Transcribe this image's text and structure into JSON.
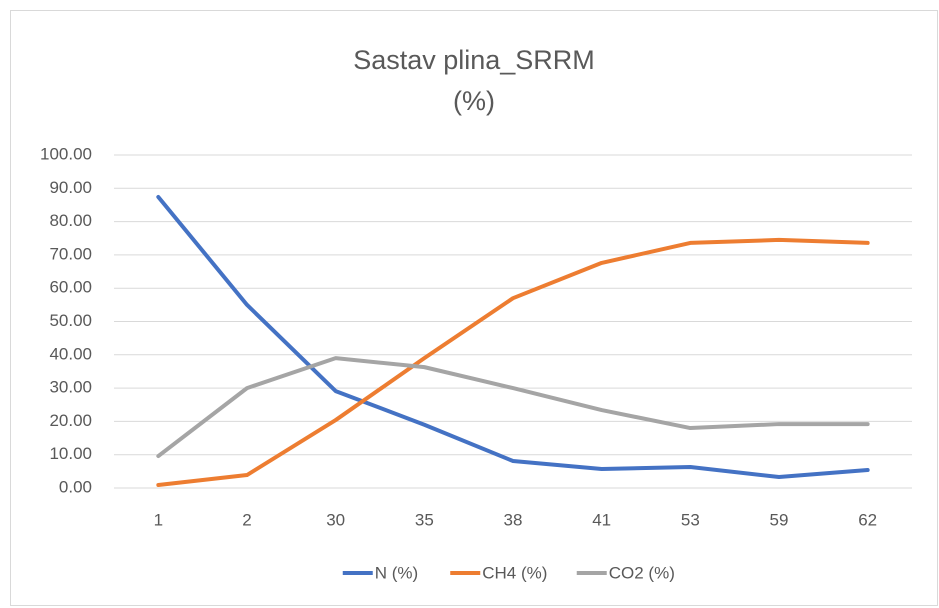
{
  "chart_data": {
    "type": "line",
    "title": "Sastav plina_SRRM",
    "subtitle": "(%)",
    "categories": [
      "1",
      "2",
      "30",
      "35",
      "38",
      "41",
      "53",
      "59",
      "62"
    ],
    "series": [
      {
        "name": "N (%)",
        "color": "#4472c4",
        "values": [
          87.4,
          55,
          29.1,
          19,
          8.1,
          5.7,
          6.3,
          3.3,
          5.4
        ]
      },
      {
        "name": "CH4 (%)",
        "color": "#ed7d31",
        "values": [
          0.9,
          3.9,
          20.4,
          39,
          57,
          67.6,
          73.6,
          74.5,
          73.6
        ]
      },
      {
        "name": "CO2 (%)",
        "color": "#a5a5a5",
        "values": [
          9.6,
          30,
          39,
          36.3,
          30,
          23.4,
          18,
          19.2,
          19.2
        ]
      }
    ],
    "ylim": [
      0,
      100
    ],
    "yticks": [
      {
        "value": 0,
        "label": "0.00"
      },
      {
        "value": 10,
        "label": "10.00"
      },
      {
        "value": 20,
        "label": "20.00"
      },
      {
        "value": 30,
        "label": "30.00"
      },
      {
        "value": 40,
        "label": "40.00"
      },
      {
        "value": 50,
        "label": "50.00"
      },
      {
        "value": 60,
        "label": "60.00"
      },
      {
        "value": 70,
        "label": "70.00"
      },
      {
        "value": 80,
        "label": "80.00"
      },
      {
        "value": 90,
        "label": "90.00"
      },
      {
        "value": 100,
        "label": "100.00"
      }
    ],
    "grid": true,
    "legend": "bottom"
  }
}
